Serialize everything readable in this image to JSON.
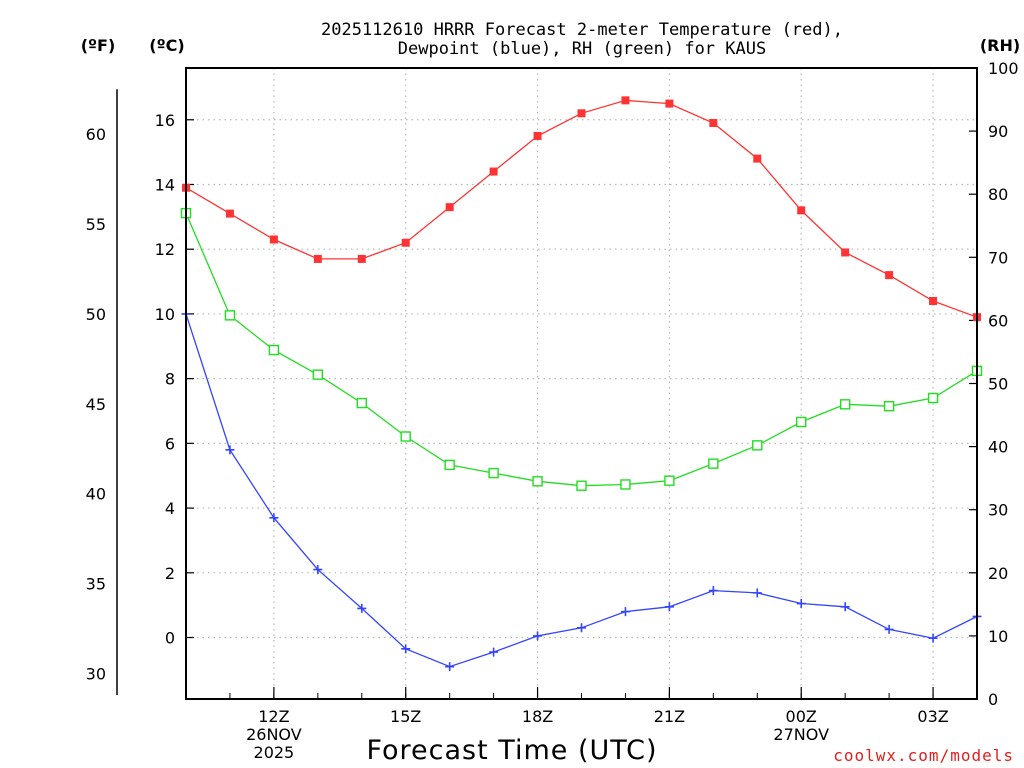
{
  "chart_data": {
    "type": "line",
    "title_lines": [
      "2025112610 HRRR Forecast 2-meter Temperature (red),",
      "Dewpoint (blue), RH (green) for KAUS"
    ],
    "xlabel": "Forecast Time (UTC)",
    "credit": "coolwx.com/models",
    "units": {
      "fahrenheit": "(ºF)",
      "celsius": "(ºC)",
      "rh": "(RH)"
    },
    "hours": [
      10,
      11,
      12,
      13,
      14,
      15,
      16,
      17,
      18,
      19,
      20,
      21,
      22,
      23,
      24,
      25,
      26,
      27,
      28
    ],
    "xlim": [
      10,
      28
    ],
    "x_ticks": [
      {
        "hour": 12,
        "lines": [
          "12Z",
          "26NOV",
          "2025"
        ]
      },
      {
        "hour": 15,
        "lines": [
          "15Z"
        ]
      },
      {
        "hour": 18,
        "lines": [
          "18Z"
        ]
      },
      {
        "hour": 21,
        "lines": [
          "21Z"
        ]
      },
      {
        "hour": 24,
        "lines": [
          "00Z",
          "27NOV"
        ]
      },
      {
        "hour": 27,
        "lines": [
          "03Z"
        ]
      }
    ],
    "celsius_axis": {
      "range": [
        -1.9,
        17.6
      ],
      "ticks": [
        0,
        2,
        4,
        6,
        8,
        10,
        12,
        14,
        16
      ]
    },
    "fahrenheit_axis": {
      "ticks": [
        30,
        35,
        40,
        45,
        50,
        55,
        60
      ]
    },
    "rh_axis": {
      "range": [
        0,
        100
      ],
      "ticks": [
        0,
        10,
        20,
        30,
        40,
        50,
        60,
        70,
        80,
        90,
        100
      ]
    },
    "series": [
      {
        "name": "2-meter Temperature",
        "axis": "celsius",
        "color": "#ff3333",
        "marker": "filled-square",
        "values": [
          13.9,
          13.1,
          12.3,
          11.7,
          11.7,
          12.2,
          13.3,
          14.4,
          15.5,
          16.2,
          16.6,
          16.5,
          15.9,
          14.8,
          13.2,
          11.9,
          11.2,
          10.4,
          9.9
        ]
      },
      {
        "name": "Dewpoint",
        "axis": "celsius",
        "color": "#3344ff",
        "marker": "plus",
        "values": [
          10.0,
          5.8,
          3.7,
          2.1,
          0.9,
          -0.35,
          -0.9,
          -0.45,
          0.05,
          0.3,
          0.8,
          0.95,
          1.45,
          1.38,
          1.05,
          0.95,
          0.25,
          -0.02,
          0.65
        ]
      },
      {
        "name": "Relative Humidity",
        "axis": "rh",
        "color": "#22dd22",
        "marker": "open-square",
        "values": [
          77.0,
          60.8,
          55.3,
          51.4,
          46.9,
          41.6,
          37.1,
          35.8,
          34.5,
          33.8,
          34.0,
          34.6,
          37.3,
          40.2,
          43.9,
          46.7,
          46.4,
          47.7,
          52.0
        ]
      }
    ]
  }
}
